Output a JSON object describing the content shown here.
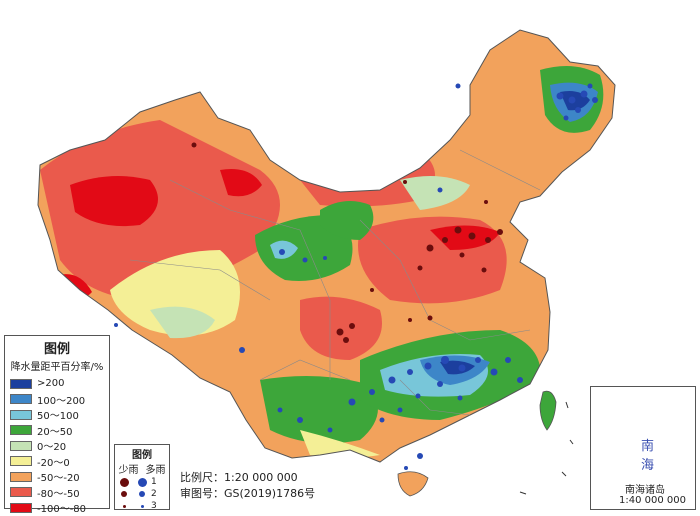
{
  "legend": {
    "title": "图例",
    "subtitle": "降水量距平百分率/%",
    "classes": [
      {
        "label": ">200",
        "color": "#1c3f9e"
      },
      {
        "label": "100～200",
        "color": "#3d86c8"
      },
      {
        "label": "50～100",
        "color": "#78c6d9"
      },
      {
        "label": "20～50",
        "color": "#3da63a"
      },
      {
        "label": "0～20",
        "color": "#c5e3b5"
      },
      {
        "label": "-20～0",
        "color": "#f4ef96"
      },
      {
        "label": "-50～-20",
        "color": "#f2a25c"
      },
      {
        "label": "-80～-50",
        "color": "#ea5a4c"
      },
      {
        "label": "-100～-80",
        "color": "#e20a16"
      }
    ]
  },
  "station_legend": {
    "title": "图例",
    "col_less": "少雨",
    "col_more": "多雨",
    "less_color": "#6b0d0d",
    "more_color": "#2649b5",
    "levels": [
      "1",
      "2",
      "3"
    ]
  },
  "scale": {
    "main": "比例尺：1:20 000 000",
    "approval": "审图号：GS(2019)1786号"
  },
  "inset": {
    "sea_label": "南 海",
    "title": "南海诸岛",
    "scale": "1:40 000 000"
  }
}
